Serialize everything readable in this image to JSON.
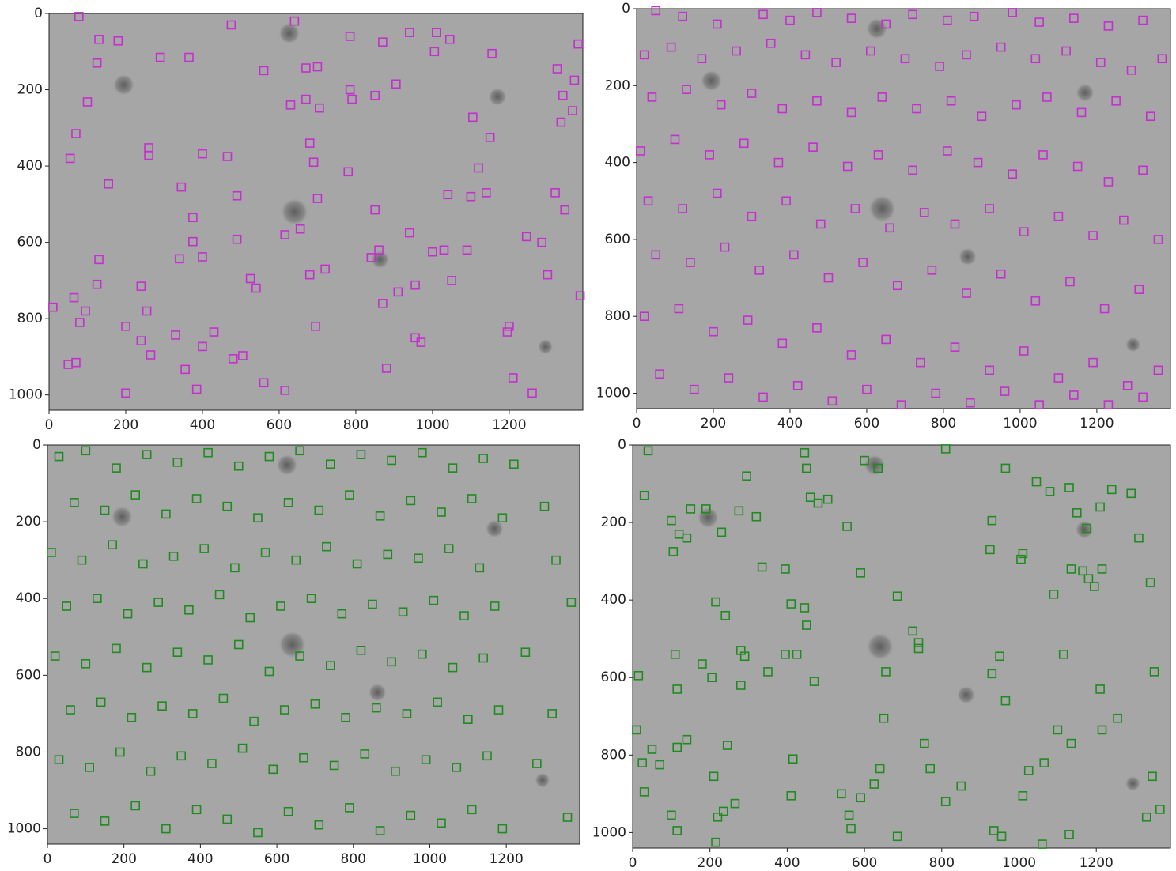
{
  "chart_data": [
    {
      "type": "scatter",
      "color": "#c52fcf",
      "marker": "square",
      "xlim": [
        0,
        1392
      ],
      "ylim": [
        1040,
        0
      ],
      "xticks": [
        0,
        200,
        400,
        600,
        800,
        1000,
        1200
      ],
      "yticks": [
        0,
        200,
        400,
        600,
        800,
        1000
      ],
      "x": [
        78,
        130,
        180,
        125,
        100,
        70,
        55,
        155,
        290,
        365,
        260,
        260,
        345,
        400,
        465,
        490,
        375,
        375,
        400,
        340,
        490,
        130,
        125,
        240,
        255,
        200,
        65,
        80,
        95,
        50,
        70,
        200,
        240,
        265,
        355,
        385,
        330,
        400,
        430,
        480,
        505,
        560,
        615,
        525,
        540,
        615,
        655,
        695,
        720,
        680,
        700,
        560,
        670,
        700,
        680,
        690,
        630,
        670,
        705,
        785,
        790,
        850,
        870,
        905,
        940,
        1010,
        1005,
        1045,
        1040,
        1105,
        1150,
        1120,
        1100,
        1140,
        1090,
        1000,
        1030,
        1050,
        955,
        910,
        840,
        860,
        870,
        880,
        955,
        970,
        940,
        850,
        780,
        1200,
        1195,
        1210,
        1260,
        1245,
        1285,
        1300,
        1320,
        1345,
        1335,
        1340,
        1365,
        1370,
        1325,
        1380,
        1385,
        1155,
        785,
        10,
        640,
        475
      ],
      "values": [
        8,
        68,
        72,
        130,
        232,
        315,
        380,
        447,
        115,
        115,
        352,
        372,
        455,
        368,
        375,
        478,
        535,
        598,
        638,
        643,
        592,
        645,
        710,
        715,
        780,
        820,
        745,
        810,
        780,
        920,
        915,
        995,
        858,
        895,
        933,
        985,
        843,
        873,
        835,
        905,
        897,
        968,
        988,
        695,
        720,
        580,
        565,
        820,
        670,
        685,
        485,
        150,
        143,
        140,
        340,
        390,
        240,
        225,
        248,
        200,
        225,
        215,
        75,
        185,
        50,
        50,
        100,
        68,
        475,
        272,
        325,
        405,
        480,
        470,
        620,
        625,
        620,
        700,
        712,
        730,
        640,
        620,
        760,
        930,
        850,
        862,
        575,
        515,
        415,
        820,
        835,
        955,
        995,
        585,
        600,
        685,
        470,
        515,
        285,
        215,
        255,
        175,
        145,
        80,
        740,
        105,
        60,
        770,
        20,
        30
      ]
    },
    {
      "type": "scatter",
      "color": "#c52fcf",
      "marker": "square",
      "xlim": [
        0,
        1392
      ],
      "ylim": [
        1040,
        0
      ],
      "xticks": [
        0,
        200,
        400,
        600,
        800,
        1000,
        1200
      ],
      "yticks": [
        0,
        200,
        400,
        600,
        800,
        1000
      ],
      "x": [
        50,
        120,
        210,
        330,
        400,
        470,
        560,
        650,
        720,
        810,
        880,
        980,
        1050,
        1140,
        1230,
        1320,
        20,
        90,
        170,
        260,
        350,
        440,
        520,
        610,
        700,
        790,
        860,
        950,
        1040,
        1120,
        1210,
        1290,
        1370,
        40,
        130,
        220,
        300,
        380,
        470,
        560,
        640,
        730,
        820,
        900,
        990,
        1070,
        1160,
        1250,
        1340,
        10,
        100,
        190,
        280,
        370,
        460,
        550,
        630,
        720,
        810,
        890,
        980,
        1060,
        1150,
        1230,
        1320,
        30,
        120,
        210,
        300,
        390,
        480,
        570,
        660,
        750,
        830,
        920,
        1010,
        1100,
        1190,
        1270,
        1360,
        50,
        140,
        230,
        320,
        410,
        500,
        590,
        680,
        770,
        860,
        950,
        1040,
        1130,
        1220,
        1310,
        20,
        110,
        200,
        290,
        380,
        470,
        560,
        650,
        740,
        830,
        920,
        1010,
        1100,
        1190,
        1280,
        1360,
        60,
        150,
        240,
        330,
        420,
        510,
        600,
        690,
        780,
        870,
        960,
        1050,
        1140,
        1230,
        1320
      ],
      "values": [
        5,
        20,
        40,
        15,
        30,
        10,
        25,
        40,
        15,
        30,
        20,
        10,
        35,
        25,
        45,
        30,
        120,
        100,
        130,
        110,
        90,
        120,
        140,
        110,
        130,
        150,
        120,
        100,
        130,
        110,
        140,
        160,
        130,
        230,
        210,
        250,
        220,
        260,
        240,
        270,
        230,
        260,
        240,
        280,
        250,
        230,
        270,
        240,
        280,
        370,
        340,
        380,
        350,
        400,
        360,
        410,
        380,
        420,
        370,
        400,
        430,
        380,
        410,
        450,
        420,
        500,
        520,
        480,
        540,
        500,
        560,
        520,
        570,
        530,
        560,
        520,
        580,
        540,
        590,
        550,
        600,
        640,
        660,
        620,
        680,
        640,
        700,
        660,
        720,
        680,
        740,
        690,
        760,
        710,
        780,
        730,
        800,
        780,
        840,
        810,
        870,
        830,
        900,
        860,
        920,
        880,
        940,
        890,
        960,
        920,
        980,
        940,
        950,
        990,
        960,
        1010,
        980,
        1020,
        990,
        1030,
        1000,
        1025,
        995,
        1030,
        1005,
        1030,
        1010
      ]
    },
    {
      "type": "scatter",
      "color": "#1e8c1e",
      "marker": "square",
      "xlim": [
        0,
        1392
      ],
      "ylim": [
        1040,
        0
      ],
      "xticks": [
        0,
        200,
        400,
        600,
        800,
        1000,
        1200
      ],
      "yticks": [
        0,
        200,
        400,
        600,
        800,
        1000
      ],
      "x": [
        30,
        100,
        180,
        260,
        340,
        420,
        500,
        580,
        660,
        740,
        820,
        900,
        980,
        1060,
        1140,
        1220,
        70,
        150,
        230,
        310,
        390,
        470,
        550,
        630,
        710,
        790,
        870,
        950,
        1030,
        1110,
        1190,
        1300,
        10,
        90,
        170,
        250,
        330,
        410,
        490,
        570,
        650,
        730,
        810,
        890,
        970,
        1050,
        1130,
        1330,
        50,
        130,
        210,
        290,
        370,
        450,
        530,
        610,
        690,
        770,
        850,
        930,
        1010,
        1090,
        1170,
        1370,
        20,
        100,
        180,
        260,
        340,
        420,
        500,
        580,
        660,
        740,
        820,
        900,
        980,
        1060,
        1140,
        1250,
        60,
        140,
        220,
        300,
        380,
        460,
        540,
        620,
        700,
        780,
        860,
        940,
        1020,
        1100,
        1180,
        1320,
        30,
        110,
        190,
        270,
        350,
        430,
        510,
        590,
        670,
        750,
        830,
        910,
        990,
        1070,
        1150,
        1280,
        70,
        150,
        230,
        310,
        390,
        470,
        550,
        630,
        710,
        790,
        870,
        950,
        1030,
        1110,
        1190,
        1360
      ],
      "values": [
        30,
        15,
        60,
        25,
        45,
        20,
        55,
        30,
        15,
        50,
        25,
        40,
        20,
        60,
        35,
        50,
        150,
        170,
        130,
        180,
        140,
        160,
        190,
        150,
        170,
        130,
        185,
        145,
        175,
        140,
        190,
        160,
        280,
        300,
        260,
        310,
        290,
        270,
        320,
        280,
        300,
        265,
        310,
        285,
        295,
        270,
        320,
        300,
        420,
        400,
        440,
        410,
        430,
        390,
        450,
        420,
        400,
        440,
        415,
        435,
        405,
        445,
        420,
        410,
        550,
        570,
        530,
        580,
        540,
        560,
        520,
        590,
        550,
        575,
        535,
        565,
        545,
        580,
        555,
        540,
        690,
        670,
        710,
        680,
        700,
        660,
        720,
        690,
        675,
        710,
        685,
        700,
        670,
        715,
        690,
        700,
        820,
        840,
        800,
        850,
        810,
        830,
        790,
        845,
        815,
        835,
        805,
        850,
        820,
        840,
        810,
        830,
        960,
        980,
        940,
        1000,
        950,
        975,
        1010,
        955,
        990,
        945,
        1005,
        965,
        985,
        950,
        1000,
        970
      ]
    },
    {
      "type": "scatter",
      "color": "#1e8c1e",
      "marker": "square",
      "xlim": [
        0,
        1392
      ],
      "ylim": [
        1040,
        0
      ],
      "xticks": [
        0,
        200,
        400,
        600,
        800,
        1000,
        1200
      ],
      "yticks": [
        0,
        200,
        400,
        600,
        800,
        1000
      ],
      "x": [
        40,
        30,
        100,
        120,
        150,
        190,
        140,
        105,
        230,
        275,
        295,
        320,
        335,
        395,
        350,
        280,
        290,
        240,
        215,
        205,
        180,
        280,
        410,
        445,
        450,
        395,
        425,
        470,
        460,
        505,
        480,
        555,
        590,
        600,
        635,
        445,
        450,
        810,
        965,
        1045,
        1080,
        1130,
        1210,
        1240,
        1290,
        1340,
        1310,
        1175,
        1150,
        1135,
        1165,
        1180,
        1195,
        1215,
        1090,
        1010,
        1005,
        930,
        925,
        950,
        930,
        965,
        1025,
        1065,
        1100,
        1115,
        1135,
        1210,
        1255,
        1215,
        1350,
        1345,
        1330,
        1365,
        1130,
        1010,
        1060,
        955,
        935,
        850,
        810,
        770,
        755,
        725,
        740,
        655,
        650,
        625,
        640,
        685,
        590,
        560,
        565,
        30,
        10,
        25,
        50,
        70,
        15,
        110,
        115,
        115,
        140,
        100,
        115,
        245,
        235,
        220,
        265,
        215,
        210,
        415,
        410,
        540,
        685,
        740
      ],
      "values": [
        15,
        130,
        195,
        230,
        165,
        165,
        240,
        275,
        225,
        170,
        80,
        185,
        315,
        320,
        585,
        530,
        545,
        440,
        405,
        600,
        565,
        620,
        410,
        420,
        465,
        540,
        540,
        610,
        135,
        140,
        150,
        210,
        330,
        40,
        60,
        20,
        60,
        10,
        60,
        95,
        120,
        110,
        160,
        115,
        125,
        355,
        240,
        215,
        175,
        320,
        325,
        345,
        365,
        320,
        385,
        280,
        295,
        195,
        270,
        545,
        590,
        660,
        840,
        820,
        735,
        540,
        770,
        630,
        705,
        735,
        585,
        855,
        960,
        940,
        1005,
        905,
        1030,
        1010,
        995,
        880,
        920,
        835,
        770,
        480,
        510,
        585,
        705,
        875,
        835,
        1010,
        910,
        955,
        990,
        895,
        735,
        820,
        785,
        825,
        595,
        540,
        630,
        780,
        760,
        955,
        995,
        775,
        945,
        960,
        925,
        1025,
        855,
        810,
        905,
        900,
        390,
        525
      ]
    }
  ]
}
